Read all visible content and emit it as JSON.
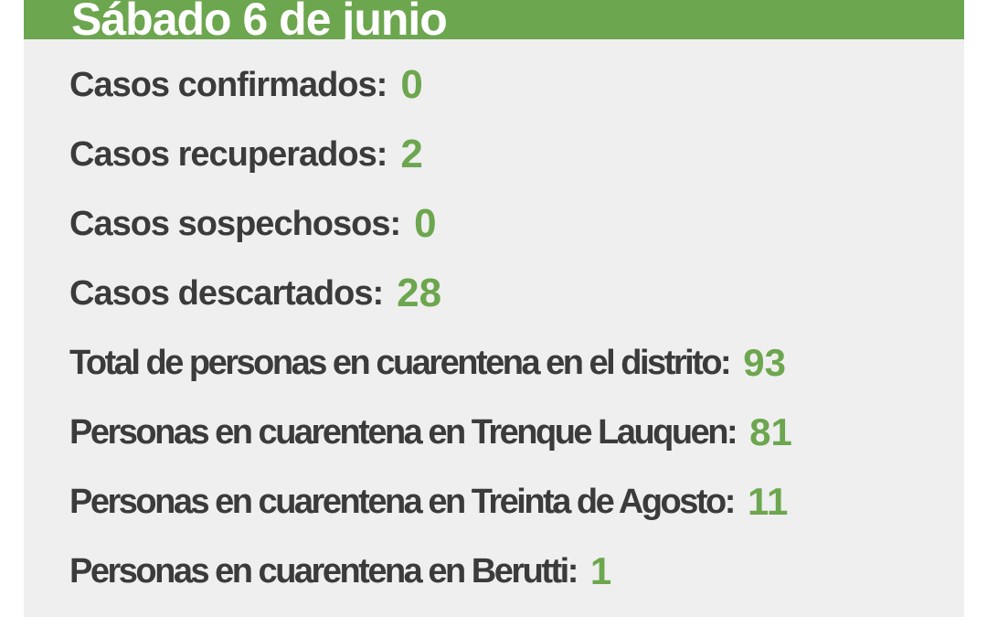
{
  "colors": {
    "accent_green_bar": "#6ca64e",
    "number_green": "#6ca64e",
    "panel_background": "#efefef",
    "page_background": "#ffffff",
    "label_text": "#3b3b3b",
    "header_text": "#ffffff"
  },
  "header": {
    "title": "Sábado 6 de junio"
  },
  "stats": [
    {
      "label": "Casos confirmados:",
      "value": "0"
    },
    {
      "label": "Casos recuperados:",
      "value": "2"
    },
    {
      "label": "Casos sospechosos:",
      "value": "0"
    },
    {
      "label": "Casos descartados:",
      "value": "28"
    },
    {
      "label": "Total de personas en cuarentena en el distrito:",
      "value": "93"
    },
    {
      "label": "Personas en cuarentena en Trenque Lauquen:",
      "value": "81"
    },
    {
      "label": "Personas en cuarentena en Treinta de Agosto:",
      "value": "11"
    },
    {
      "label": "Personas en cuarentena en Berutti:",
      "value": "1"
    }
  ]
}
